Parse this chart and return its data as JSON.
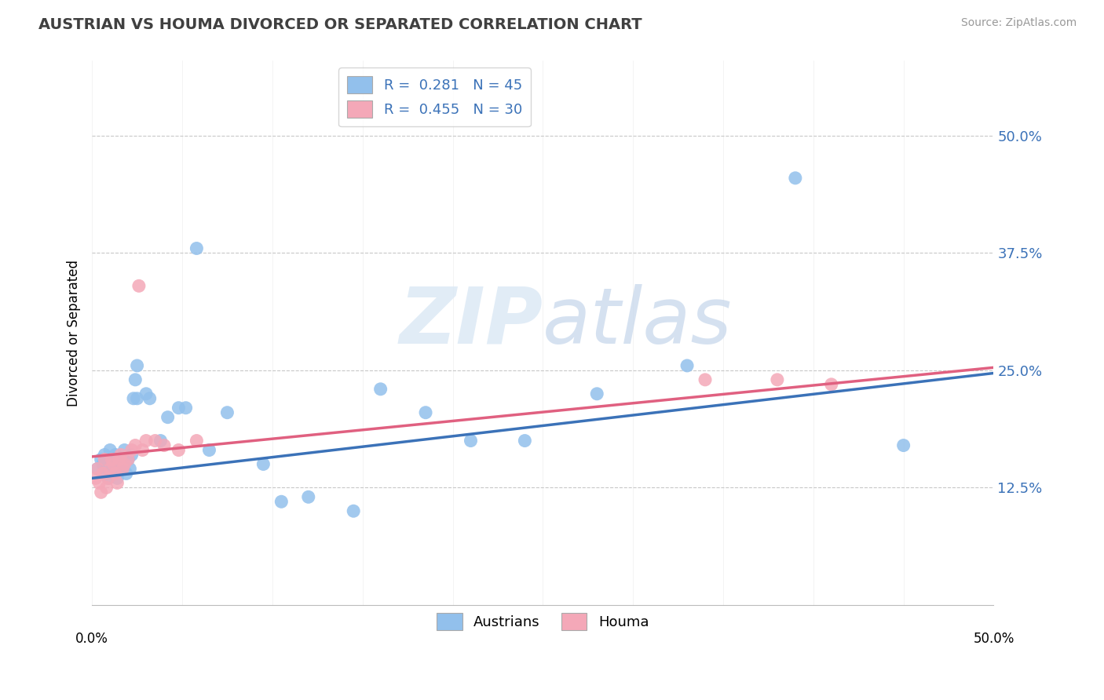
{
  "title": "AUSTRIAN VS HOUMA DIVORCED OR SEPARATED CORRELATION CHART",
  "source": "Source: ZipAtlas.com",
  "ylabel": "Divorced or Separated",
  "ytick_labels": [
    "12.5%",
    "25.0%",
    "37.5%",
    "50.0%"
  ],
  "ytick_values": [
    0.125,
    0.25,
    0.375,
    0.5
  ],
  "xlim": [
    0.0,
    0.5
  ],
  "ylim": [
    0.0,
    0.58
  ],
  "legend_line1": "R =  0.281   N = 45",
  "legend_line2": "R =  0.455   N = 30",
  "austrian_color": "#92C0EC",
  "houma_color": "#F4A8B8",
  "trendline_austrian_color": "#3B72B8",
  "trendline_houma_color": "#E06080",
  "background_color": "#FFFFFF",
  "grid_color": "#C8C8C8",
  "austrian_x": [
    0.003,
    0.005,
    0.006,
    0.007,
    0.008,
    0.009,
    0.01,
    0.01,
    0.011,
    0.012,
    0.013,
    0.014,
    0.015,
    0.016,
    0.017,
    0.018,
    0.019,
    0.02,
    0.021,
    0.022,
    0.023,
    0.024,
    0.025,
    0.025,
    0.03,
    0.032,
    0.038,
    0.042,
    0.048,
    0.052,
    0.058,
    0.065,
    0.075,
    0.095,
    0.105,
    0.12,
    0.145,
    0.16,
    0.185,
    0.21,
    0.24,
    0.28,
    0.33,
    0.39,
    0.45
  ],
  "austrian_y": [
    0.145,
    0.155,
    0.15,
    0.16,
    0.14,
    0.135,
    0.165,
    0.15,
    0.155,
    0.145,
    0.16,
    0.135,
    0.155,
    0.15,
    0.145,
    0.165,
    0.14,
    0.155,
    0.145,
    0.16,
    0.22,
    0.24,
    0.255,
    0.22,
    0.225,
    0.22,
    0.175,
    0.2,
    0.21,
    0.21,
    0.38,
    0.165,
    0.205,
    0.15,
    0.11,
    0.115,
    0.1,
    0.23,
    0.205,
    0.175,
    0.175,
    0.225,
    0.255,
    0.455,
    0.17
  ],
  "houma_x": [
    0.002,
    0.003,
    0.004,
    0.005,
    0.006,
    0.007,
    0.008,
    0.009,
    0.01,
    0.011,
    0.012,
    0.013,
    0.014,
    0.015,
    0.016,
    0.017,
    0.018,
    0.02,
    0.022,
    0.024,
    0.026,
    0.028,
    0.03,
    0.035,
    0.04,
    0.048,
    0.058,
    0.34,
    0.38,
    0.41
  ],
  "houma_y": [
    0.135,
    0.145,
    0.13,
    0.12,
    0.14,
    0.155,
    0.125,
    0.135,
    0.145,
    0.155,
    0.15,
    0.14,
    0.13,
    0.155,
    0.16,
    0.145,
    0.15,
    0.155,
    0.165,
    0.17,
    0.34,
    0.165,
    0.175,
    0.175,
    0.17,
    0.165,
    0.175,
    0.24,
    0.24,
    0.235
  ]
}
